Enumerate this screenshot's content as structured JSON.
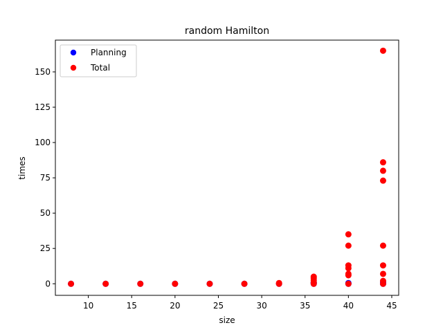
{
  "chart_data": {
    "type": "scatter",
    "title": "random Hamilton",
    "xlabel": "size",
    "ylabel": "times",
    "xlim": [
      6.2,
      45.8
    ],
    "ylim": [
      -8.2,
      172.5
    ],
    "xticks": [
      10,
      15,
      20,
      25,
      30,
      35,
      40,
      45
    ],
    "yticks": [
      0,
      25,
      50,
      75,
      100,
      125,
      150
    ],
    "grid": false,
    "legend_position": "top-left",
    "series": [
      {
        "name": "Planning",
        "color": "#0000ff",
        "x": [
          8,
          12,
          16,
          20,
          24,
          28,
          32,
          36,
          36,
          36,
          40,
          40,
          44,
          44
        ],
        "y": [
          0,
          0,
          0,
          0,
          0,
          0,
          0,
          0,
          0.5,
          1,
          0,
          0.5,
          0,
          1
        ]
      },
      {
        "name": "Total",
        "color": "#ff0000",
        "x": [
          8,
          12,
          16,
          20,
          24,
          28,
          32,
          32,
          36,
          36,
          36,
          36,
          36,
          40,
          40,
          40,
          40,
          40,
          40,
          40,
          44,
          44,
          44,
          44,
          44,
          44,
          44,
          44,
          44
        ],
        "y": [
          0,
          0,
          0,
          0,
          0,
          0,
          0,
          0.5,
          0,
          1,
          2.5,
          4,
          5,
          0,
          6,
          7,
          11,
          13,
          27,
          35,
          0,
          2,
          7,
          13,
          27,
          73,
          80,
          86,
          165
        ]
      }
    ]
  }
}
